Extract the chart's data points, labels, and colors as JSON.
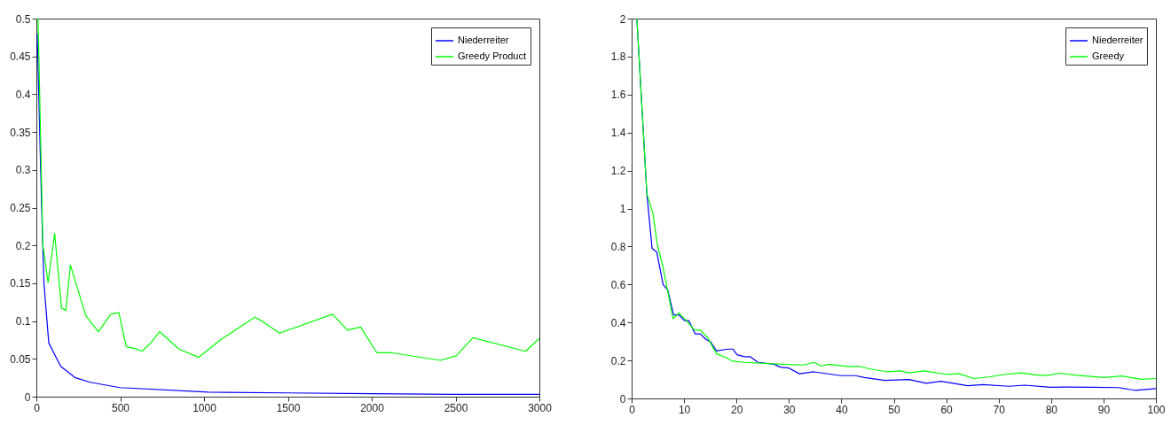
{
  "chart_data": [
    {
      "type": "line",
      "xlim": [
        0,
        3000
      ],
      "ylim": [
        0,
        0.5
      ],
      "xticks": [
        0,
        500,
        1000,
        1500,
        2000,
        2500,
        3000
      ],
      "yticks": [
        0,
        0.05,
        0.1,
        0.15,
        0.2,
        0.25,
        0.3,
        0.35,
        0.4,
        0.45,
        0.5
      ],
      "grid": false,
      "legend": "top right",
      "marker": "none",
      "line_style": "solid",
      "series": [
        {
          "name": "Niederreiter",
          "color": "#0000ff",
          "x": [
            5,
            30,
            45,
            74,
            145,
            233,
            321,
            497,
            1026,
            1500,
            2000,
            2500,
            3000
          ],
          "values": [
            0.48,
            0.263,
            0.15,
            0.071,
            0.04,
            0.025,
            0.019,
            0.012,
            0.006,
            0.005,
            0.004,
            0.003,
            0.003
          ]
        },
        {
          "name": "Greedy Product",
          "color": "#00ff00",
          "x": [
            10,
            39,
            70,
            109,
            150,
            176,
            203,
            295,
            370,
            444,
            492,
            536,
            585,
            630,
            682,
            735,
            850,
            968,
            1097,
            1303,
            1344,
            1450,
            1767,
            1855,
            1934,
            2031,
            2120,
            2410,
            2504,
            2604,
            2917,
            3000
          ],
          "values": [
            0.5,
            0.2,
            0.151,
            0.216,
            0.117,
            0.114,
            0.174,
            0.107,
            0.086,
            0.109,
            0.111,
            0.066,
            0.064,
            0.06,
            0.071,
            0.086,
            0.063,
            0.052,
            0.075,
            0.105,
            0.1,
            0.084,
            0.109,
            0.088,
            0.092,
            0.058,
            0.058,
            0.048,
            0.054,
            0.078,
            0.06,
            0.077
          ]
        }
      ]
    },
    {
      "type": "line",
      "xlim": [
        0,
        100
      ],
      "ylim": [
        0,
        2
      ],
      "xticks": [
        0,
        10,
        20,
        30,
        40,
        50,
        60,
        70,
        80,
        90,
        100
      ],
      "yticks": [
        0,
        0.2,
        0.4,
        0.6,
        0.8,
        1,
        1.2,
        1.4,
        1.6,
        1.8,
        2
      ],
      "grid": false,
      "legend": "top right",
      "marker": "none",
      "line_style": "solid",
      "series": [
        {
          "name": "Niederreiter",
          "color": "#0000ff",
          "x": [
            1,
            2.9,
            3.9,
            4.8,
            6,
            6.9,
            8,
            9,
            10.1,
            10.9,
            12.1,
            13.1,
            14.2,
            15,
            16.2,
            18.4,
            19.3,
            20.1,
            21.5,
            22.6,
            24.1,
            27.2,
            28.3,
            30,
            32,
            34.8,
            39.9,
            42.7,
            44.4,
            48.3,
            52.9,
            56.2,
            59,
            64.1,
            67,
            72,
            75,
            79.9,
            82.7,
            87.8,
            92.9,
            96,
            100
          ],
          "values": [
            2,
            1.08,
            0.79,
            0.77,
            0.6,
            0.57,
            0.44,
            0.44,
            0.41,
            0.41,
            0.34,
            0.34,
            0.31,
            0.3,
            0.25,
            0.26,
            0.26,
            0.23,
            0.22,
            0.22,
            0.19,
            0.18,
            0.165,
            0.16,
            0.13,
            0.14,
            0.12,
            0.12,
            0.11,
            0.095,
            0.1,
            0.08,
            0.09,
            0.067,
            0.073,
            0.064,
            0.07,
            0.059,
            0.06,
            0.059,
            0.057,
            0.043,
            0.052
          ]
        },
        {
          "name": "Greedy",
          "color": "#00ff00",
          "x": [
            1,
            2.9,
            4.1,
            4.9,
            6,
            7.9,
            9,
            10.1,
            12,
            13.1,
            14.5,
            16.2,
            17.6,
            19.3,
            21.5,
            28.6,
            32.8,
            34.8,
            36.2,
            37.6,
            41.5,
            43.3,
            45.5,
            48.9,
            51.2,
            52.9,
            55.7,
            60.2,
            62.5,
            65.3,
            68.1,
            70.9,
            74.3,
            77.7,
            79.4,
            81.6,
            85,
            90.1,
            93.5,
            97.2,
            100
          ],
          "values": [
            2,
            1.08,
            0.97,
            0.81,
            0.69,
            0.42,
            0.45,
            0.42,
            0.36,
            0.36,
            0.32,
            0.235,
            0.22,
            0.196,
            0.19,
            0.18,
            0.176,
            0.19,
            0.17,
            0.18,
            0.167,
            0.17,
            0.155,
            0.14,
            0.145,
            0.135,
            0.145,
            0.126,
            0.13,
            0.105,
            0.113,
            0.126,
            0.135,
            0.122,
            0.122,
            0.133,
            0.122,
            0.11,
            0.118,
            0.101,
            0.105
          ]
        }
      ]
    }
  ]
}
